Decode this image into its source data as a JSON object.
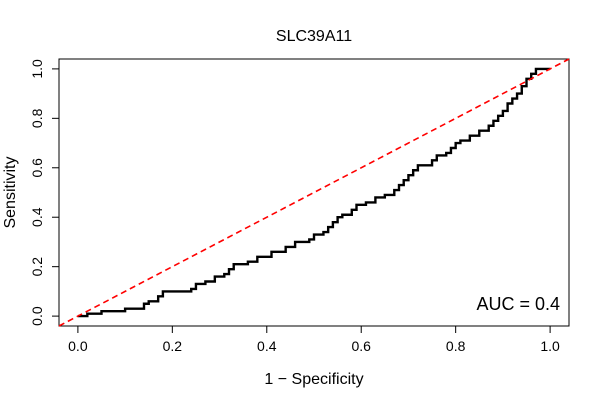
{
  "chart_data": {
    "type": "line",
    "title": "SLC39A11",
    "xlabel": "1 − Specificity",
    "ylabel": "Sensitivity",
    "xlim": [
      -0.04,
      1.04
    ],
    "ylim": [
      -0.04,
      1.04
    ],
    "xticks": [
      0.0,
      0.2,
      0.4,
      0.6,
      0.8,
      1.0
    ],
    "xtick_labels": [
      "0.0",
      "0.2",
      "0.4",
      "0.6",
      "0.8",
      "1.0"
    ],
    "yticks": [
      0.0,
      0.2,
      0.4,
      0.6,
      0.8,
      1.0
    ],
    "ytick_labels": [
      "0.0",
      "0.2",
      "0.4",
      "0.6",
      "0.8",
      "1.0"
    ],
    "grid": false,
    "annotation": "AUC = 0.4",
    "series": [
      {
        "color": "#000000",
        "style": "solid-step",
        "points": [
          [
            0.0,
            0.0
          ],
          [
            0.02,
            0.0
          ],
          [
            0.02,
            0.01
          ],
          [
            0.05,
            0.01
          ],
          [
            0.05,
            0.02
          ],
          [
            0.1,
            0.02
          ],
          [
            0.1,
            0.03
          ],
          [
            0.14,
            0.03
          ],
          [
            0.14,
            0.05
          ],
          [
            0.15,
            0.05
          ],
          [
            0.15,
            0.06
          ],
          [
            0.17,
            0.06
          ],
          [
            0.17,
            0.08
          ],
          [
            0.18,
            0.08
          ],
          [
            0.18,
            0.1
          ],
          [
            0.24,
            0.1
          ],
          [
            0.24,
            0.11
          ],
          [
            0.25,
            0.11
          ],
          [
            0.25,
            0.13
          ],
          [
            0.27,
            0.13
          ],
          [
            0.27,
            0.14
          ],
          [
            0.29,
            0.14
          ],
          [
            0.29,
            0.16
          ],
          [
            0.31,
            0.16
          ],
          [
            0.31,
            0.17
          ],
          [
            0.32,
            0.17
          ],
          [
            0.32,
            0.19
          ],
          [
            0.33,
            0.19
          ],
          [
            0.33,
            0.21
          ],
          [
            0.36,
            0.21
          ],
          [
            0.36,
            0.22
          ],
          [
            0.38,
            0.22
          ],
          [
            0.38,
            0.24
          ],
          [
            0.41,
            0.24
          ],
          [
            0.41,
            0.26
          ],
          [
            0.44,
            0.26
          ],
          [
            0.44,
            0.28
          ],
          [
            0.46,
            0.28
          ],
          [
            0.46,
            0.3
          ],
          [
            0.49,
            0.3
          ],
          [
            0.49,
            0.31
          ],
          [
            0.5,
            0.31
          ],
          [
            0.5,
            0.33
          ],
          [
            0.52,
            0.33
          ],
          [
            0.52,
            0.34
          ],
          [
            0.53,
            0.34
          ],
          [
            0.53,
            0.36
          ],
          [
            0.54,
            0.36
          ],
          [
            0.54,
            0.38
          ],
          [
            0.55,
            0.38
          ],
          [
            0.55,
            0.4
          ],
          [
            0.56,
            0.4
          ],
          [
            0.56,
            0.41
          ],
          [
            0.58,
            0.41
          ],
          [
            0.58,
            0.43
          ],
          [
            0.59,
            0.43
          ],
          [
            0.59,
            0.45
          ],
          [
            0.61,
            0.45
          ],
          [
            0.61,
            0.46
          ],
          [
            0.63,
            0.46
          ],
          [
            0.63,
            0.48
          ],
          [
            0.65,
            0.48
          ],
          [
            0.65,
            0.49
          ],
          [
            0.67,
            0.49
          ],
          [
            0.67,
            0.51
          ],
          [
            0.68,
            0.51
          ],
          [
            0.68,
            0.53
          ],
          [
            0.69,
            0.53
          ],
          [
            0.69,
            0.55
          ],
          [
            0.7,
            0.55
          ],
          [
            0.7,
            0.57
          ],
          [
            0.71,
            0.57
          ],
          [
            0.71,
            0.59
          ],
          [
            0.72,
            0.59
          ],
          [
            0.72,
            0.61
          ],
          [
            0.75,
            0.61
          ],
          [
            0.75,
            0.63
          ],
          [
            0.76,
            0.63
          ],
          [
            0.76,
            0.65
          ],
          [
            0.78,
            0.65
          ],
          [
            0.78,
            0.66
          ],
          [
            0.79,
            0.66
          ],
          [
            0.79,
            0.68
          ],
          [
            0.8,
            0.68
          ],
          [
            0.8,
            0.7
          ],
          [
            0.81,
            0.7
          ],
          [
            0.81,
            0.71
          ],
          [
            0.83,
            0.71
          ],
          [
            0.83,
            0.73
          ],
          [
            0.85,
            0.73
          ],
          [
            0.85,
            0.75
          ],
          [
            0.87,
            0.75
          ],
          [
            0.87,
            0.77
          ],
          [
            0.88,
            0.77
          ],
          [
            0.88,
            0.79
          ],
          [
            0.89,
            0.79
          ],
          [
            0.89,
            0.81
          ],
          [
            0.9,
            0.81
          ],
          [
            0.9,
            0.83
          ],
          [
            0.91,
            0.83
          ],
          [
            0.91,
            0.86
          ],
          [
            0.92,
            0.86
          ],
          [
            0.92,
            0.88
          ],
          [
            0.93,
            0.88
          ],
          [
            0.93,
            0.9
          ],
          [
            0.94,
            0.9
          ],
          [
            0.94,
            0.93
          ],
          [
            0.95,
            0.93
          ],
          [
            0.95,
            0.96
          ],
          [
            0.96,
            0.96
          ],
          [
            0.96,
            0.98
          ],
          [
            0.97,
            0.98
          ],
          [
            0.97,
            1.0
          ],
          [
            1.0,
            1.0
          ]
        ]
      },
      {
        "color": "#ff0000",
        "style": "dashed",
        "points": [
          [
            -0.04,
            -0.04
          ],
          [
            1.04,
            1.04
          ]
        ]
      }
    ]
  }
}
